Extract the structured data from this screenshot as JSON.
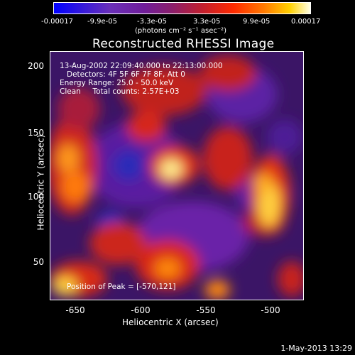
{
  "colorbar": {
    "ticks": [
      "-0.00017",
      "-9.9e-05",
      "-3.3e-05",
      "3.3e-05",
      "9.9e-05",
      "0.00017"
    ],
    "units": "(photons cm⁻² s⁻¹ asec⁻²)"
  },
  "plot": {
    "title": "Reconstructed RHESSI Image",
    "annotations": {
      "time_range": "13-Aug-2002 22:09:40.000 to 22:13:00.000",
      "detectors": "Detectors: 4F 5F 6F 7F 8F, Att 0",
      "energy_range": "Energy Range: 25.0 - 50.0 keV",
      "clean_counts": "Clean     Total counts: 2.57E+03",
      "peak_position": "Position of Peak = [-570,121]"
    },
    "x_ticks": [
      "-650",
      "-600",
      "-550",
      "-500"
    ],
    "y_ticks": [
      "200",
      "150",
      "100",
      "50"
    ],
    "xlabel": "Heliocentric X (arcsec)",
    "ylabel": "Heliocentric Y (arcsec)"
  },
  "footer": {
    "date": "1-May-2013 13:29"
  },
  "colors": {
    "background": "#000000",
    "text": "#ffffff"
  }
}
